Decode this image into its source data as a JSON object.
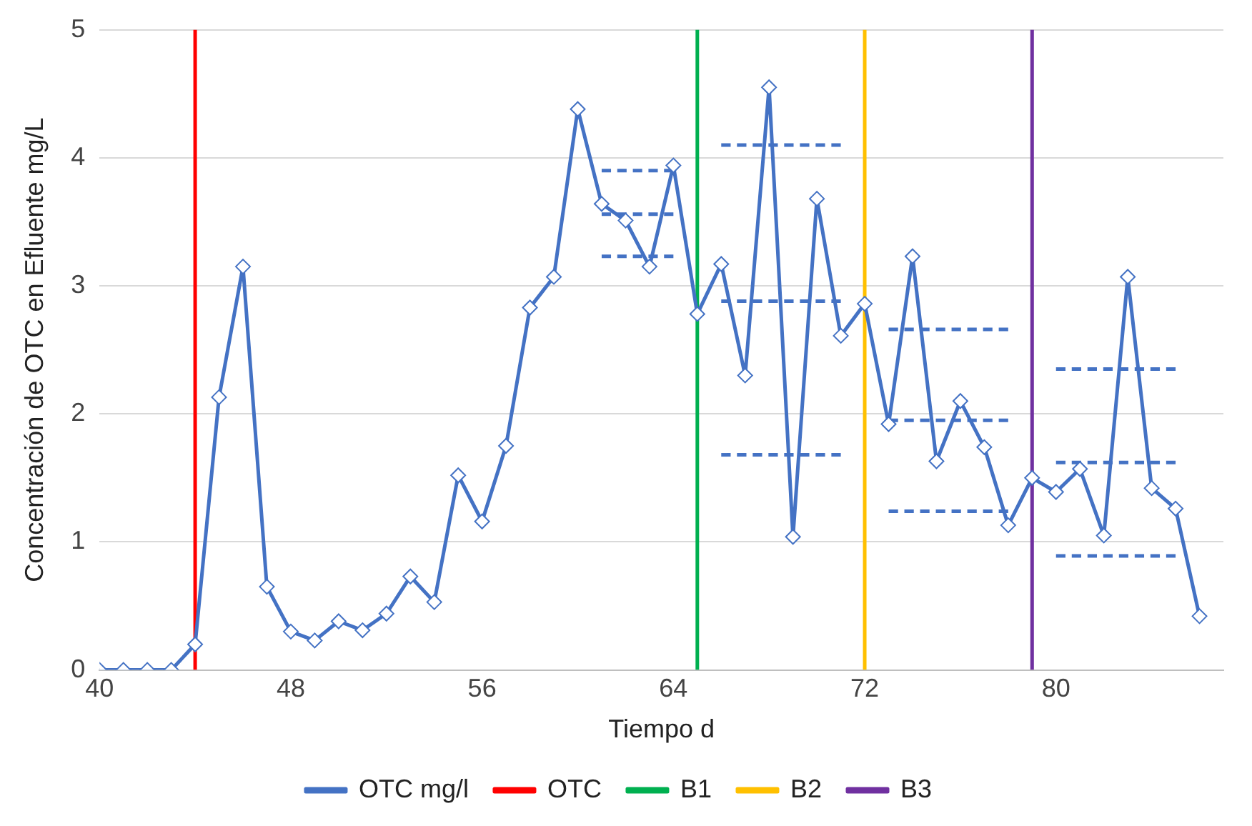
{
  "chart_data": {
    "type": "line",
    "xlabel": "Tiempo d",
    "ylabel": "Concentración de OTC en Efluente mg/L",
    "x": [
      40,
      41,
      42,
      43,
      44,
      45,
      46,
      47,
      48,
      49,
      50,
      51,
      52,
      53,
      54,
      55,
      56,
      57,
      58,
      59,
      60,
      61,
      62,
      63,
      64,
      65,
      66,
      67,
      68,
      69,
      70,
      71,
      72,
      73,
      74,
      75,
      76,
      77,
      78,
      79,
      80,
      81,
      82,
      83,
      84,
      85,
      86
    ],
    "xlim": [
      40,
      87
    ],
    "xticks": [
      40,
      48,
      56,
      64,
      72,
      80
    ],
    "ylim": [
      0,
      5
    ],
    "yticks": [
      0,
      1,
      2,
      3,
      4,
      5
    ],
    "grid": "y",
    "legend": "bottom",
    "series": [
      {
        "name": "OTC mg/l",
        "color": "#4472c4",
        "marker": "diamond",
        "values": [
          0,
          0,
          0,
          0,
          0.2,
          2.13,
          3.15,
          0.65,
          0.3,
          0.23,
          0.38,
          0.31,
          0.44,
          0.73,
          0.53,
          1.52,
          1.16,
          1.75,
          2.83,
          3.07,
          4.38,
          3.64,
          3.51,
          3.15,
          3.94,
          2.78,
          3.17,
          2.3,
          4.55,
          1.04,
          3.68,
          2.61,
          2.86,
          1.92,
          3.23,
          1.63,
          2.1,
          1.74,
          1.13,
          1.5,
          1.39,
          1.57,
          1.05,
          3.07,
          1.42,
          1.26,
          0.42
        ]
      },
      {
        "name": "OTC",
        "color": "#ff0000",
        "marker": "none",
        "x": [
          44,
          44
        ],
        "values": [
          0,
          5
        ]
      },
      {
        "name": "B1",
        "color": "#00b050",
        "marker": "none",
        "x": [
          65,
          65
        ],
        "values": [
          0,
          5
        ]
      },
      {
        "name": "B2",
        "color": "#ffc000",
        "marker": "none",
        "x": [
          72,
          72
        ],
        "values": [
          0,
          5
        ]
      },
      {
        "name": "B3",
        "color": "#7030a0",
        "marker": "none",
        "x": [
          79,
          79
        ],
        "values": [
          0,
          5
        ]
      },
      {
        "color": "#4472c4",
        "marker": "none",
        "line_style": "dashed",
        "x": [
          61,
          64
        ],
        "values": [
          3.9,
          3.9
        ]
      },
      {
        "color": "#4472c4",
        "marker": "none",
        "line_style": "dashed",
        "x": [
          61,
          64
        ],
        "values": [
          3.56,
          3.56
        ]
      },
      {
        "color": "#4472c4",
        "marker": "none",
        "line_style": "dashed",
        "x": [
          61,
          64
        ],
        "values": [
          3.23,
          3.23
        ]
      },
      {
        "color": "#4472c4",
        "marker": "none",
        "line_style": "dashed",
        "x": [
          66,
          71
        ],
        "values": [
          4.1,
          4.1
        ]
      },
      {
        "color": "#4472c4",
        "marker": "none",
        "line_style": "dashed",
        "x": [
          66,
          71
        ],
        "values": [
          2.88,
          2.88
        ]
      },
      {
        "color": "#4472c4",
        "marker": "none",
        "line_style": "dashed",
        "x": [
          66,
          71
        ],
        "values": [
          1.68,
          1.68
        ]
      },
      {
        "color": "#4472c4",
        "marker": "none",
        "line_style": "dashed",
        "x": [
          73,
          78
        ],
        "values": [
          2.66,
          2.66
        ]
      },
      {
        "color": "#4472c4",
        "marker": "none",
        "line_style": "dashed",
        "x": [
          73,
          78
        ],
        "values": [
          1.95,
          1.95
        ]
      },
      {
        "color": "#4472c4",
        "marker": "none",
        "line_style": "dashed",
        "x": [
          73,
          78
        ],
        "values": [
          1.24,
          1.24
        ]
      },
      {
        "color": "#4472c4",
        "marker": "none",
        "line_style": "dashed",
        "x": [
          80,
          85
        ],
        "values": [
          2.35,
          2.35
        ]
      },
      {
        "color": "#4472c4",
        "marker": "none",
        "line_style": "dashed",
        "x": [
          80,
          85
        ],
        "values": [
          1.62,
          1.62
        ]
      },
      {
        "color": "#4472c4",
        "marker": "none",
        "line_style": "dashed",
        "x": [
          80,
          85
        ],
        "values": [
          0.89,
          0.89
        ]
      }
    ]
  }
}
